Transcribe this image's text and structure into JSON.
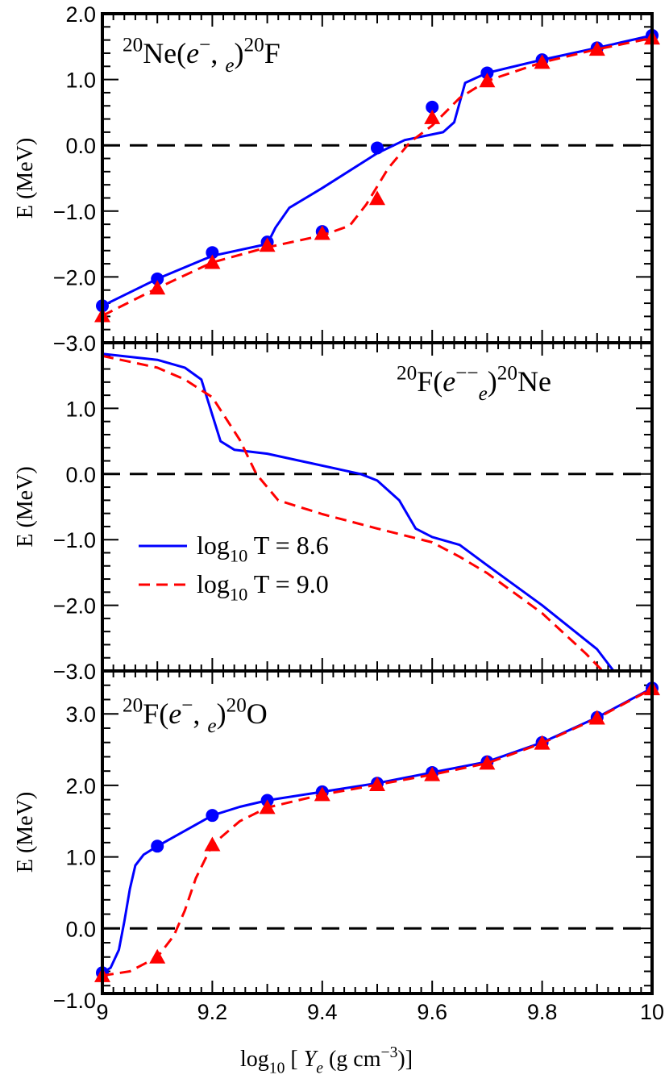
{
  "chart_data": [
    {
      "type": "line",
      "title_parts": [
        {
          "t": "20",
          "s": "sup"
        },
        {
          "t": "Ne(",
          "s": "n"
        },
        {
          "t": "e",
          "s": "i"
        },
        {
          "t": "−",
          "s": "sup"
        },
        {
          "t": ",  ",
          "s": "n"
        },
        {
          "t": "e",
          "s": "subi"
        },
        {
          "t": ")",
          "s": "n"
        },
        {
          "t": "20",
          "s": "sup"
        },
        {
          "t": "F",
          "s": "n"
        }
      ],
      "ylabel": "E (MeV)",
      "xlim": [
        9,
        10
      ],
      "ylim": [
        -3,
        2
      ],
      "yticks": [
        2,
        1,
        0,
        -1,
        -2,
        -3
      ],
      "ytick_labels": [
        "2.0",
        "1.0",
        "0.0",
        "−1.0",
        "−2.0",
        "−3.0"
      ],
      "reference_line": 0,
      "series": [
        {
          "color": "#0000ff",
          "style": "solid",
          "marker": "circle",
          "points_x": [
            9.0,
            9.1,
            9.2,
            9.3,
            9.4,
            9.5,
            9.6,
            9.7,
            9.8,
            9.9,
            10.0
          ],
          "points_y": [
            -2.44,
            -2.03,
            -1.63,
            -1.47,
            -1.31,
            -0.04,
            0.58,
            1.1,
            1.3,
            1.48,
            1.67
          ],
          "line_x": [
            9.0,
            9.1,
            9.2,
            9.3,
            9.315,
            9.34,
            9.4,
            9.5,
            9.55,
            9.62,
            9.64,
            9.66,
            9.7,
            9.8,
            9.9,
            10.0
          ],
          "line_y": [
            -2.44,
            -2.03,
            -1.68,
            -1.5,
            -1.25,
            -0.95,
            -0.65,
            -0.12,
            0.08,
            0.2,
            0.35,
            0.95,
            1.1,
            1.3,
            1.48,
            1.67
          ]
        },
        {
          "color": "#ff0000",
          "style": "dashed",
          "marker": "triangle",
          "points_x": [
            9.0,
            9.1,
            9.2,
            9.3,
            9.4,
            9.5,
            9.6,
            9.7,
            9.8,
            9.9,
            10.0
          ],
          "points_y": [
            -2.59,
            -2.17,
            -1.78,
            -1.52,
            -1.34,
            -0.81,
            0.42,
            0.98,
            1.26,
            1.46,
            1.63
          ],
          "line_x": [
            9.0,
            9.1,
            9.2,
            9.3,
            9.4,
            9.45,
            9.48,
            9.52,
            9.56,
            9.6,
            9.65,
            9.7,
            9.8,
            9.9,
            10.0
          ],
          "line_y": [
            -2.59,
            -2.17,
            -1.78,
            -1.55,
            -1.37,
            -1.22,
            -0.9,
            -0.35,
            0.05,
            0.3,
            0.72,
            0.98,
            1.26,
            1.46,
            1.63
          ]
        }
      ]
    },
    {
      "type": "line",
      "title_parts": [
        {
          "t": "20",
          "s": "sup"
        },
        {
          "t": "F(",
          "s": "n"
        },
        {
          "t": "e",
          "s": "i"
        },
        {
          "t": "−−",
          "s": "sup"
        },
        {
          "t": "e",
          "s": "subi"
        },
        {
          "t": ")",
          "s": "n"
        },
        {
          "t": "20",
          "s": "sup"
        },
        {
          "t": "Ne",
          "s": "n"
        }
      ],
      "ylabel": "E (MeV)",
      "xlim": [
        9,
        10
      ],
      "ylim": [
        -3,
        2
      ],
      "yticks": [
        1,
        0,
        -1,
        -2,
        -3
      ],
      "ytick_labels": [
        "1.0",
        "0.0",
        "−1.0",
        "−2.0",
        "−3.0"
      ],
      "reference_line": 0,
      "legend": {
        "placement": "lower-left",
        "entries": [
          {
            "prefix": "log",
            "sub": "10",
            "suffix": " T = 8.6",
            "color": "#0000ff",
            "style": "solid"
          },
          {
            "prefix": "log",
            "sub": "10",
            "suffix": " T = 9.0",
            "color": "#ff0000",
            "style": "dashed"
          }
        ]
      },
      "series": [
        {
          "color": "#0000ff",
          "style": "solid",
          "marker": "none",
          "line_x": [
            9.0,
            9.1,
            9.15,
            9.18,
            9.2,
            9.215,
            9.24,
            9.3,
            9.47,
            9.5,
            9.54,
            9.57,
            9.6,
            9.65,
            9.7,
            9.8,
            9.9,
            9.93
          ],
          "line_y": [
            1.83,
            1.74,
            1.62,
            1.44,
            0.9,
            0.5,
            0.37,
            0.31,
            0.0,
            -0.1,
            -0.4,
            -0.83,
            -0.96,
            -1.08,
            -1.39,
            -2.0,
            -2.67,
            -3.0
          ]
        },
        {
          "color": "#ff0000",
          "style": "dashed",
          "marker": "none",
          "line_x": [
            9.0,
            9.1,
            9.15,
            9.2,
            9.25,
            9.28,
            9.32,
            9.4,
            9.5,
            9.6,
            9.65,
            9.7,
            9.8,
            9.88,
            9.91
          ],
          "line_y": [
            1.8,
            1.62,
            1.44,
            1.17,
            0.52,
            0.0,
            -0.4,
            -0.61,
            -0.83,
            -1.04,
            -1.26,
            -1.51,
            -2.12,
            -2.74,
            -3.0
          ]
        }
      ]
    },
    {
      "type": "line",
      "title_parts": [
        {
          "t": "20",
          "s": "sup"
        },
        {
          "t": "F(",
          "s": "n"
        },
        {
          "t": "e",
          "s": "i"
        },
        {
          "t": "−",
          "s": "sup"
        },
        {
          "t": ",  ",
          "s": "n"
        },
        {
          "t": "e",
          "s": "subi"
        },
        {
          "t": ")",
          "s": "n"
        },
        {
          "t": "20",
          "s": "sup"
        },
        {
          "t": "O",
          "s": "n"
        }
      ],
      "ylabel": "E (MeV)",
      "xlabel_parts": [
        {
          "t": "log",
          "s": "n"
        },
        {
          "t": "10",
          "s": "sub"
        },
        {
          "t": " [   ",
          "s": "n"
        },
        {
          "t": "Y",
          "s": "i"
        },
        {
          "t": "e",
          "s": "subi"
        },
        {
          "t": " (g cm",
          "s": "n"
        },
        {
          "t": "−3",
          "s": "sup"
        },
        {
          "t": ")]",
          "s": "n"
        }
      ],
      "xlim": [
        9,
        10
      ],
      "ylim": [
        -0.91,
        3.6
      ],
      "xticks": [
        9,
        9.2,
        9.4,
        9.6,
        9.8,
        10
      ],
      "xtick_labels": [
        "9",
        "9.2",
        "9.4",
        "9.6",
        "9.8",
        "10"
      ],
      "yticks": [
        3,
        2,
        1,
        0,
        -1
      ],
      "ytick_labels": [
        "3.0",
        "2.0",
        "1.0",
        "0.0",
        "−1.0"
      ],
      "reference_line": 0,
      "series": [
        {
          "color": "#0000ff",
          "style": "solid",
          "marker": "circle",
          "points_x": [
            9.0,
            9.1,
            9.2,
            9.3,
            9.4,
            9.5,
            9.6,
            9.7,
            9.8,
            9.9,
            10.0
          ],
          "points_y": [
            -0.62,
            1.15,
            1.58,
            1.79,
            1.91,
            2.03,
            2.18,
            2.33,
            2.6,
            2.95,
            3.36
          ],
          "line_x": [
            9.0,
            9.015,
            9.03,
            9.04,
            9.05,
            9.06,
            9.075,
            9.1,
            9.2,
            9.25,
            9.3,
            9.4,
            9.5,
            9.6,
            9.7,
            9.8,
            9.9,
            10.0
          ],
          "line_y": [
            -0.62,
            -0.55,
            -0.3,
            0.1,
            0.55,
            0.88,
            1.03,
            1.15,
            1.58,
            1.7,
            1.79,
            1.91,
            2.03,
            2.18,
            2.33,
            2.6,
            2.95,
            3.36
          ]
        },
        {
          "color": "#ff0000",
          "style": "dashed",
          "marker": "triangle",
          "points_x": [
            9.0,
            9.1,
            9.2,
            9.3,
            9.4,
            9.5,
            9.6,
            9.7,
            9.8,
            9.9,
            10.0
          ],
          "points_y": [
            -0.66,
            -0.4,
            1.17,
            1.69,
            1.87,
            2.01,
            2.15,
            2.31,
            2.59,
            2.94,
            3.35
          ],
          "line_x": [
            9.0,
            9.05,
            9.1,
            9.13,
            9.15,
            9.17,
            9.2,
            9.25,
            9.3,
            9.4,
            9.5,
            9.6,
            9.7,
            9.8,
            9.9,
            10.0
          ],
          "line_y": [
            -0.66,
            -0.6,
            -0.4,
            -0.1,
            0.25,
            0.7,
            1.17,
            1.5,
            1.69,
            1.87,
            2.01,
            2.15,
            2.31,
            2.59,
            2.94,
            3.35
          ]
        }
      ]
    }
  ]
}
